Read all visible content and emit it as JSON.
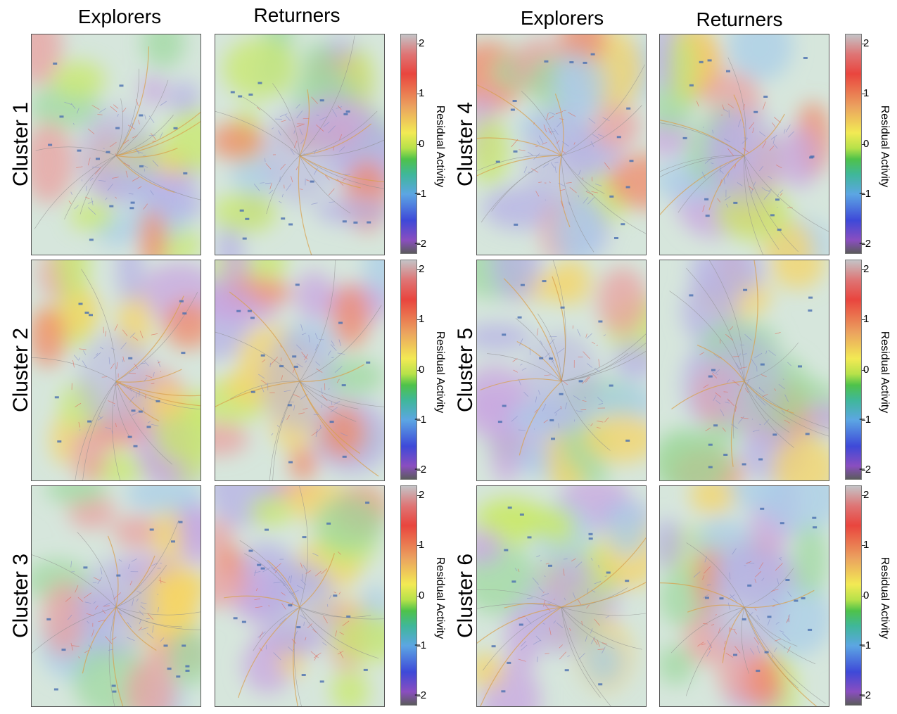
{
  "columns": {
    "left_explorers": "Explorers",
    "left_returners": "Returners",
    "right_explorers": "Explorers",
    "right_returners": "Returners"
  },
  "clusters": [
    {
      "id": 1,
      "label": "Cluster 1"
    },
    {
      "id": 2,
      "label": "Cluster 2"
    },
    {
      "id": 3,
      "label": "Cluster 3"
    },
    {
      "id": 4,
      "label": "Cluster 4"
    },
    {
      "id": 5,
      "label": "Cluster 5"
    },
    {
      "id": 6,
      "label": "Cluster 6"
    }
  ],
  "colorbar": {
    "label": "Residual Activity",
    "ticks": [
      "2",
      "1",
      "0",
      "−1",
      "−2"
    ],
    "tick_values": [
      2,
      1,
      0,
      -1,
      -2
    ],
    "range": [
      -2.2,
      2.2
    ],
    "colors": [
      "#5b5b5d",
      "#8a4ec0",
      "#3e49d8",
      "#5ca6e3",
      "#3fb79a",
      "#4fc24a",
      "#b6e14a",
      "#f2ea54",
      "#eba25f",
      "#e9453e",
      "#de7575",
      "#c4c3c6"
    ]
  }
}
